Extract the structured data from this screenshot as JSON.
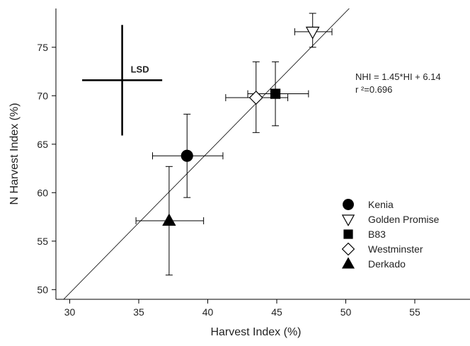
{
  "chart_data": {
    "type": "scatter",
    "xlabel": "Harvest Index (%)",
    "ylabel": "N Harvest Index (%)",
    "xlim": [
      29,
      59
    ],
    "ylim": [
      49,
      79
    ],
    "x_ticks": [
      30,
      35,
      40,
      45,
      50,
      55
    ],
    "y_ticks": [
      50,
      55,
      60,
      65,
      70,
      75
    ],
    "grid": false,
    "legend_position": "bottom-right",
    "series": [
      {
        "name": "Kenia",
        "marker": "circle-filled",
        "x": 38.5,
        "y": 63.8,
        "x_err": [
          36.0,
          41.1
        ],
        "y_err": [
          59.5,
          68.1
        ]
      },
      {
        "name": "Golden Promise",
        "marker": "triangle-down-open",
        "x": 47.6,
        "y": 76.6,
        "x_err": [
          46.3,
          49.0
        ],
        "y_err": [
          75.0,
          78.5
        ]
      },
      {
        "name": "B83",
        "marker": "square-filled",
        "x": 44.9,
        "y": 70.2,
        "x_err": [
          42.9,
          47.3
        ],
        "y_err": [
          66.9,
          73.5
        ]
      },
      {
        "name": "Westminster",
        "marker": "diamond-open",
        "x": 43.5,
        "y": 69.8,
        "x_err": [
          41.3,
          45.8
        ],
        "y_err": [
          66.2,
          73.5
        ]
      },
      {
        "name": "Derkado",
        "marker": "triangle-up-filled",
        "x": 37.2,
        "y": 57.1,
        "x_err": [
          34.8,
          39.7
        ],
        "y_err": [
          51.5,
          62.7
        ]
      }
    ],
    "regression": {
      "slope": 1.45,
      "intercept": 6.14,
      "x_range": [
        29.5,
        51.5
      ]
    },
    "annotations": {
      "equation": "NHI = 1.45*HI + 6.14",
      "r_squared": "r ²=0.696",
      "lsd_label": "LSD"
    },
    "lsd_bar": {
      "center_x": 33.8,
      "center_y": 71.6,
      "half_width_x": 2.9,
      "half_height_y": 5.7
    }
  }
}
